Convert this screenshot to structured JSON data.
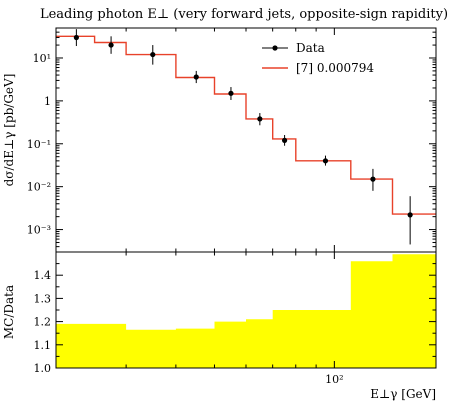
{
  "chart_data": [
    {
      "type": "line",
      "title": "Leading photon E⊥ (very forward jets, opposite-sign rapidity)",
      "xlabel": "",
      "ylabel": "dσ/dE⊥γ [pb/GeV]",
      "xscale": "log",
      "yscale": "log",
      "xlim": [
        20,
        180
      ],
      "ylim": [
        0.0003,
        50
      ],
      "y_ticks": [
        {
          "value": 0.001,
          "label": "10⁻³"
        },
        {
          "value": 0.01,
          "label": "10⁻²"
        },
        {
          "value": 0.1,
          "label": "10⁻¹"
        },
        {
          "value": 1,
          "label": "1"
        },
        {
          "value": 10,
          "label": "10¹"
        }
      ],
      "legend_position": "top-right",
      "series": [
        {
          "name": "Data",
          "style": "points-with-errors",
          "color": "#000000",
          "points": [
            {
              "x": 22.5,
              "y": 30,
              "lo": 19,
              "hi": 47
            },
            {
              "x": 27.5,
              "y": 20,
              "lo": 12.5,
              "hi": 32
            },
            {
              "x": 35,
              "y": 12,
              "lo": 7,
              "hi": 20
            },
            {
              "x": 45,
              "y": 3.6,
              "lo": 2.6,
              "hi": 5.0
            },
            {
              "x": 55,
              "y": 1.5,
              "lo": 1.05,
              "hi": 2.1
            },
            {
              "x": 65,
              "y": 0.38,
              "lo": 0.27,
              "hi": 0.52
            },
            {
              "x": 75,
              "y": 0.12,
              "lo": 0.09,
              "hi": 0.16
            },
            {
              "x": 95,
              "y": 0.04,
              "lo": 0.031,
              "hi": 0.053
            },
            {
              "x": 125,
              "y": 0.015,
              "lo": 0.008,
              "hi": 0.026
            },
            {
              "x": 155,
              "y": 0.0022,
              "lo": 0.00045,
              "hi": 0.006
            }
          ]
        },
        {
          "name": "[7] 0.000794",
          "style": "step",
          "color": "#e8422a",
          "bins": [
            {
              "x0": 20,
              "x1": 25,
              "y": 32
            },
            {
              "x0": 25,
              "x1": 30,
              "y": 23
            },
            {
              "x0": 30,
              "x1": 40,
              "y": 12
            },
            {
              "x0": 40,
              "x1": 50,
              "y": 3.5
            },
            {
              "x0": 50,
              "x1": 60,
              "y": 1.45
            },
            {
              "x0": 60,
              "x1": 70,
              "y": 0.38
            },
            {
              "x0": 70,
              "x1": 80,
              "y": 0.13
            },
            {
              "x0": 80,
              "x1": 110,
              "y": 0.04
            },
            {
              "x0": 110,
              "x1": 140,
              "y": 0.015
            },
            {
              "x0": 140,
              "x1": 180,
              "y": 0.0023
            }
          ]
        }
      ]
    },
    {
      "type": "area",
      "title": "",
      "xlabel": "E⊥γ [GeV]",
      "ylabel": "MC/Data",
      "xscale": "log",
      "xlim": [
        20,
        180
      ],
      "ylim": [
        1.0,
        1.5
      ],
      "x_ticks": [
        {
          "value": 100,
          "label": "10²"
        }
      ],
      "y_ticks": [
        {
          "value": 1.0,
          "label": "1.0"
        },
        {
          "value": 1.1,
          "label": "1.1"
        },
        {
          "value": 1.2,
          "label": "1.2"
        },
        {
          "value": 1.3,
          "label": "1.3"
        },
        {
          "value": 1.4,
          "label": "1.4"
        }
      ],
      "series": [
        {
          "name": "",
          "color": "#ffff00",
          "bins": [
            {
              "x0": 20,
              "x1": 25,
              "y": 1.19
            },
            {
              "x0": 25,
              "x1": 30,
              "y": 1.19
            },
            {
              "x0": 30,
              "x1": 40,
              "y": 1.165
            },
            {
              "x0": 40,
              "x1": 50,
              "y": 1.17
            },
            {
              "x0": 50,
              "x1": 60,
              "y": 1.2
            },
            {
              "x0": 60,
              "x1": 70,
              "y": 1.21
            },
            {
              "x0": 70,
              "x1": 110,
              "y": 1.25
            },
            {
              "x0": 110,
              "x1": 140,
              "y": 1.46
            },
            {
              "x0": 140,
              "x1": 180,
              "y": 1.49
            }
          ]
        }
      ]
    }
  ]
}
